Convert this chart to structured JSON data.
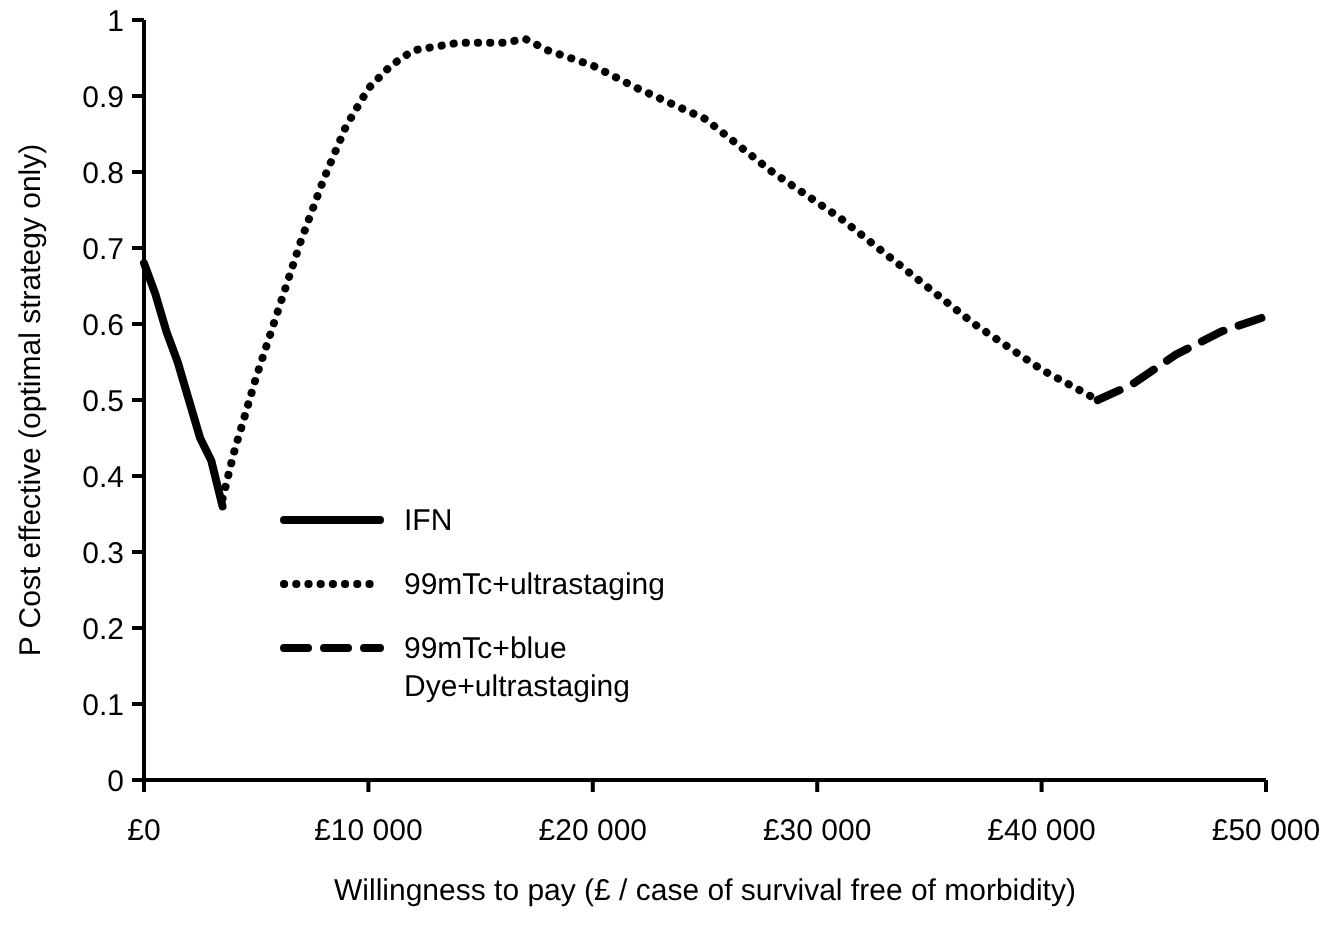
{
  "chart_data": {
    "type": "line",
    "xlabel": "Willingness to pay (£ / case of survival free of morbidity)",
    "ylabel": "P Cost effective (optimal strategy only)",
    "xlim": [
      0,
      50000
    ],
    "ylim": [
      0,
      1
    ],
    "xticks": [
      {
        "value": 0,
        "label": "£0"
      },
      {
        "value": 10000,
        "label": "£10 000"
      },
      {
        "value": 20000,
        "label": "£20 000"
      },
      {
        "value": 30000,
        "label": "£30 000"
      },
      {
        "value": 40000,
        "label": "£40 000"
      },
      {
        "value": 50000,
        "label": "£50 000"
      }
    ],
    "yticks": [
      0,
      0.1,
      0.2,
      0.3,
      0.4,
      0.5,
      0.6,
      0.7,
      0.8,
      0.9,
      1
    ],
    "legend": "bottom left",
    "grid": false,
    "series": [
      {
        "name": "IFN",
        "color": "#000000",
        "line_style": "solid",
        "x": [
          0,
          500,
          1000,
          1500,
          2000,
          2500,
          3000,
          3500
        ],
        "values": [
          0.68,
          0.64,
          0.59,
          0.55,
          0.5,
          0.45,
          0.42,
          0.36
        ]
      },
      {
        "name": "99mTc+ultrastaging",
        "color": "#000000",
        "line_style": "dotted",
        "x": [
          3500,
          4000,
          5000,
          6000,
          7000,
          8000,
          9000,
          10000,
          11000,
          12000,
          14000,
          16000,
          17000,
          18000,
          20000,
          22000,
          25000,
          28000,
          31000,
          34000,
          37000,
          40000,
          42500
        ],
        "values": [
          0.37,
          0.43,
          0.53,
          0.62,
          0.71,
          0.79,
          0.86,
          0.91,
          0.94,
          0.96,
          0.97,
          0.97,
          0.975,
          0.96,
          0.94,
          0.91,
          0.87,
          0.8,
          0.74,
          0.67,
          0.6,
          0.54,
          0.5
        ]
      },
      {
        "name": "99mTc+blue Dye+ultrastaging",
        "color": "#000000",
        "line_style": "dashed",
        "x": [
          42500,
          44000,
          46000,
          48000,
          50000
        ],
        "values": [
          0.5,
          0.52,
          0.56,
          0.59,
          0.61
        ]
      }
    ]
  }
}
